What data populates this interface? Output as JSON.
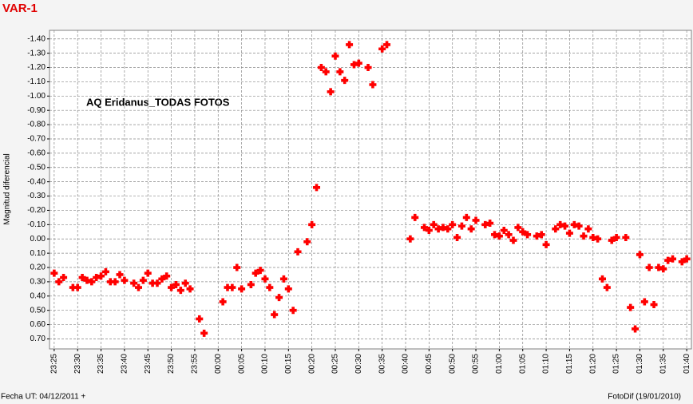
{
  "chart_data": {
    "type": "scatter",
    "title": "VAR-1",
    "annotation": "AQ Eridanus_TODAS FOTOS",
    "y_label": "Magnitud diferencial",
    "footer_left": "Fecha UT: 04/12/2011 +",
    "footer_right": "FotoDif (19/01/2010)",
    "color": "#ff0000",
    "grid": true,
    "xlim": [
      "23:24",
      "01:41"
    ],
    "ylim": [
      0.77,
      -1.46
    ],
    "xticks": [
      "23:25",
      "23:30",
      "23:35",
      "23:40",
      "23:45",
      "23:50",
      "23:55",
      "00:00",
      "00:05",
      "00:10",
      "00:15",
      "00:20",
      "00:25",
      "00:30",
      "00:35",
      "00:40",
      "00:45",
      "00:50",
      "00:55",
      "01:00",
      "01:05",
      "01:10",
      "01:15",
      "01:20",
      "01:25",
      "01:30",
      "01:35",
      "01:40"
    ],
    "yticks": [
      {
        "value": -1.4,
        "label": "-1.40"
      },
      {
        "value": -1.3,
        "label": "-1.30"
      },
      {
        "value": -1.2,
        "label": "-1.20"
      },
      {
        "value": -1.1,
        "label": "-1.10"
      },
      {
        "value": -1.0,
        "label": "-1.00"
      },
      {
        "value": -0.9,
        "label": "-0.90"
      },
      {
        "value": -0.8,
        "label": "-0.80"
      },
      {
        "value": -0.7,
        "label": "-0.70"
      },
      {
        "value": -0.6,
        "label": "-0.60"
      },
      {
        "value": -0.5,
        "label": "-0.50"
      },
      {
        "value": -0.4,
        "label": "-0.40"
      },
      {
        "value": -0.3,
        "label": "-0.30"
      },
      {
        "value": -0.2,
        "label": "-0.20"
      },
      {
        "value": -0.1,
        "label": "-0.10"
      },
      {
        "value": 0,
        "label": "0.00"
      },
      {
        "value": 0.1,
        "label": "0.10"
      },
      {
        "value": 0.2,
        "label": "0.20"
      },
      {
        "value": 0.3,
        "label": "0.30"
      },
      {
        "value": 0.4,
        "label": "0.40"
      },
      {
        "value": 0.5,
        "label": "0.50"
      },
      {
        "value": 0.6,
        "label": "0.60"
      },
      {
        "value": 0.7,
        "label": "0.70"
      }
    ],
    "x": [
      "23:25",
      "23:26",
      "23:27",
      "23:29",
      "23:30",
      "23:31",
      "23:32",
      "23:33",
      "23:34",
      "23:35",
      "23:36",
      "23:37",
      "23:38",
      "23:39",
      "23:40",
      "23:42",
      "23:43",
      "23:44",
      "23:45",
      "23:46",
      "23:47",
      "23:48",
      "23:49",
      "23:50",
      "23:51",
      "23:52",
      "23:53",
      "23:54",
      "23:56",
      "23:57",
      "00:01",
      "00:02",
      "00:03",
      "00:04",
      "00:05",
      "00:07",
      "00:08",
      "00:09",
      "00:10",
      "00:11",
      "00:12",
      "00:13",
      "00:14",
      "00:15",
      "00:16",
      "00:17",
      "00:19",
      "00:20",
      "00:21",
      "00:22",
      "00:23",
      "00:24",
      "00:25",
      "00:26",
      "00:27",
      "00:28",
      "00:29",
      "00:30",
      "00:32",
      "00:33",
      "00:35",
      "00:36",
      "00:41",
      "00:42",
      "00:44",
      "00:45",
      "00:46",
      "00:47",
      "00:48",
      "00:49",
      "00:50",
      "00:51",
      "00:52",
      "00:53",
      "00:54",
      "00:55",
      "00:57",
      "00:58",
      "00:59",
      "01:00",
      "01:01",
      "01:02",
      "01:03",
      "01:04",
      "01:05",
      "01:06",
      "01:08",
      "01:09",
      "01:10",
      "01:12",
      "01:13",
      "01:14",
      "01:15",
      "01:16",
      "01:17",
      "01:18",
      "01:19",
      "01:20",
      "01:21",
      "01:22",
      "01:23",
      "01:24",
      "01:25",
      "01:27",
      "01:28",
      "01:29",
      "01:30",
      "01:31",
      "01:32",
      "01:33",
      "01:34",
      "01:35",
      "01:36",
      "01:37",
      "01:39",
      "01:40"
    ],
    "values": [
      0.24,
      0.3,
      0.27,
      0.34,
      0.34,
      0.27,
      0.29,
      0.3,
      0.27,
      0.26,
      0.23,
      0.3,
      0.3,
      0.25,
      0.29,
      0.31,
      0.34,
      0.29,
      0.24,
      0.31,
      0.31,
      0.28,
      0.26,
      0.34,
      0.32,
      0.36,
      0.31,
      0.35,
      0.56,
      0.66,
      0.44,
      0.34,
      0.34,
      0.2,
      0.35,
      0.32,
      0.24,
      0.22,
      0.28,
      0.34,
      0.53,
      0.41,
      0.28,
      0.35,
      0.5,
      0.09,
      0.02,
      -0.1,
      -0.36,
      -1.2,
      -1.17,
      -1.03,
      -1.28,
      -1.17,
      -1.11,
      -1.36,
      -1.22,
      -1.23,
      -1.2,
      -1.08,
      -1.33,
      -1.36,
      0.0,
      -0.15,
      -0.08,
      -0.06,
      -0.1,
      -0.07,
      -0.08,
      -0.07,
      -0.1,
      -0.01,
      -0.09,
      -0.15,
      -0.07,
      -0.13,
      -0.1,
      -0.11,
      -0.03,
      -0.02,
      -0.06,
      -0.03,
      0.01,
      -0.08,
      -0.05,
      -0.03,
      -0.02,
      -0.03,
      0.04,
      -0.07,
      -0.1,
      -0.09,
      -0.04,
      -0.1,
      -0.09,
      -0.02,
      -0.07,
      -0.01,
      0.0,
      0.28,
      0.34,
      0.01,
      -0.01,
      -0.01,
      0.48,
      0.63,
      0.11,
      0.44,
      0.2,
      0.46,
      0.2,
      0.21,
      0.15,
      0.14,
      0.16,
      0.14
    ]
  }
}
